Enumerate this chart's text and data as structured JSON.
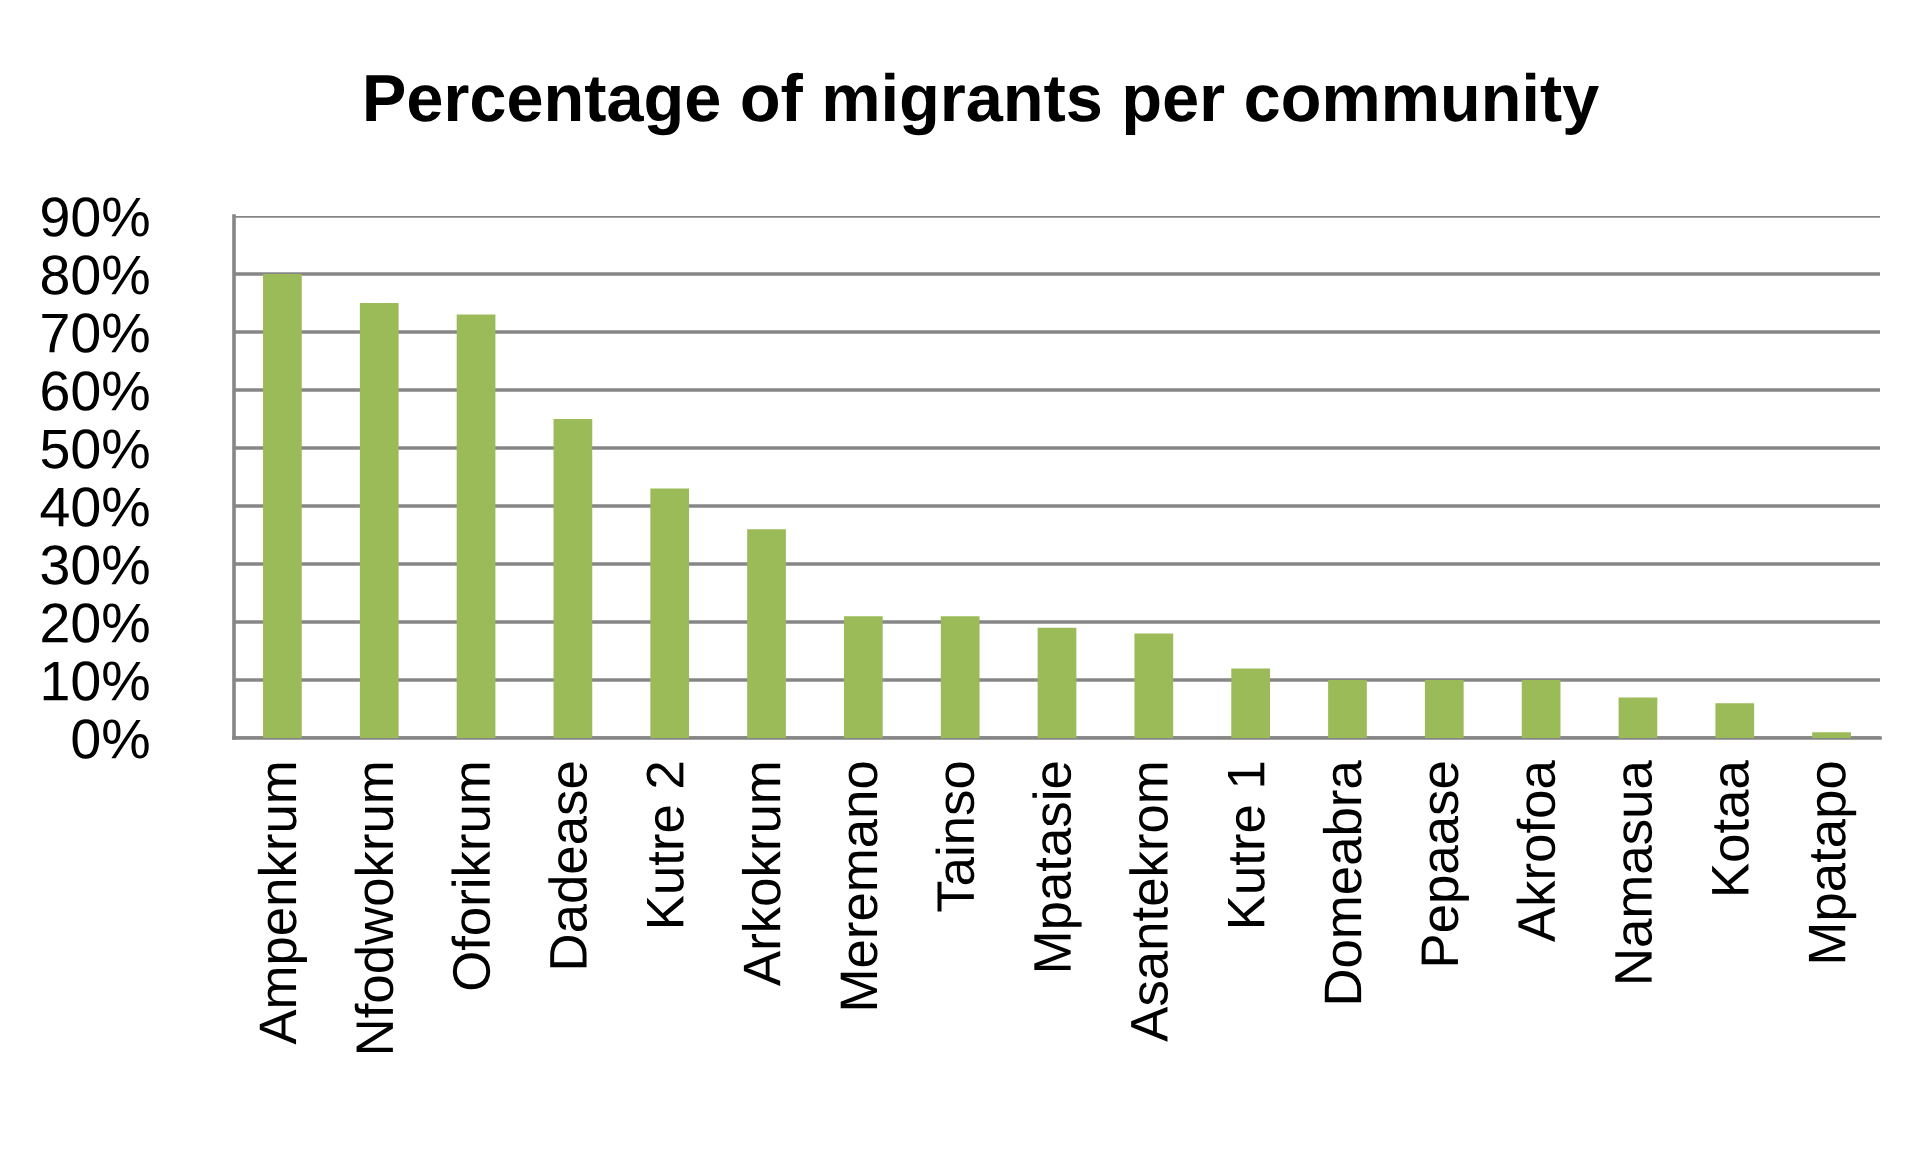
{
  "chart_data": {
    "type": "bar",
    "title": "Percentage of migrants per community",
    "categories": [
      "Ampenkrum",
      "Nfodwokrum",
      "Oforikrum",
      "Dadease",
      "Kutre 2",
      "Arkokrum",
      "Meremano",
      "Tainso",
      "Mpatasie",
      "Asantekrom",
      "Kutre 1",
      "Domeabra",
      "Pepaase",
      "Akrofoa",
      "Namasua",
      "Kotaa",
      "Mpatapo"
    ],
    "values": [
      80,
      75,
      73,
      55,
      43,
      36,
      21,
      21,
      19,
      18,
      12,
      10,
      10,
      10,
      7,
      6,
      1
    ],
    "color": "#9bbb59",
    "ylim": [
      0,
      90
    ],
    "yticks": [
      {
        "value": 0,
        "label": "0%"
      },
      {
        "value": 10,
        "label": "10%"
      },
      {
        "value": 20,
        "label": "20%"
      },
      {
        "value": 30,
        "label": "30%"
      },
      {
        "value": 40,
        "label": "40%"
      },
      {
        "value": 50,
        "label": "50%"
      },
      {
        "value": 60,
        "label": "60%"
      },
      {
        "value": 70,
        "label": "70%"
      },
      {
        "value": 80,
        "label": "80%"
      },
      {
        "value": 90,
        "label": "90%"
      }
    ],
    "grid": "y"
  }
}
